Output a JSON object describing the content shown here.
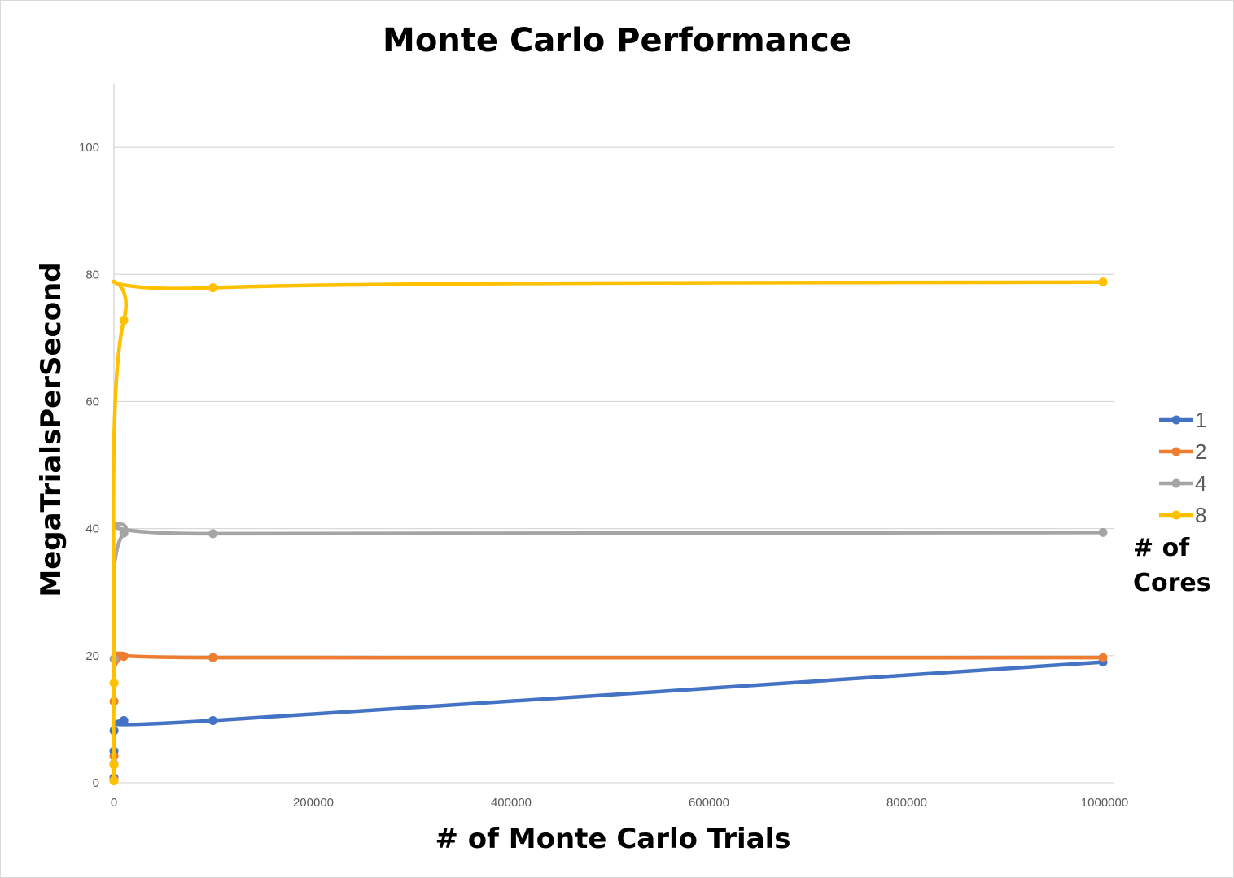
{
  "chart_data": {
    "type": "line",
    "title": "Monte Carlo Performance",
    "xlabel": "# of Monte Carlo Trials",
    "ylabel": "MegaTrialsPerSecond",
    "xlim": [
      0,
      1000000
    ],
    "ylim": [
      0,
      110
    ],
    "x_ticks": [
      0,
      200000,
      400000,
      600000,
      800000,
      1000000
    ],
    "x_tick_labels": [
      "0",
      "200000",
      "400000",
      "600000",
      "800000",
      "1000000"
    ],
    "y_ticks": [
      0,
      20,
      40,
      60,
      80,
      100
    ],
    "y_tick_labels": [
      "0",
      "20",
      "40",
      "60",
      "80",
      "100"
    ],
    "grid": "horizontal",
    "legend": {
      "position": "right",
      "title": "# of Cores"
    },
    "series": [
      {
        "name": "1",
        "color": "#4472C4",
        "points": [
          [
            1,
            0.8
          ],
          [
            10,
            5.0
          ],
          [
            100,
            8.2
          ],
          [
            10000,
            9.8
          ],
          [
            100000,
            9.8
          ],
          [
            1000000,
            19.0
          ]
        ]
      },
      {
        "name": "2",
        "color": "#ED7D31",
        "points": [
          [
            1,
            0.5
          ],
          [
            10,
            4.2
          ],
          [
            100,
            12.8
          ],
          [
            10000,
            19.9
          ],
          [
            100000,
            19.7
          ],
          [
            1000000,
            19.7
          ]
        ]
      },
      {
        "name": "4",
        "color": "#A5A5A5",
        "points": [
          [
            1,
            0.4
          ],
          [
            10,
            3.0
          ],
          [
            100,
            19.5
          ],
          [
            10000,
            39.3
          ],
          [
            100000,
            39.2
          ],
          [
            1000000,
            39.4
          ]
        ]
      },
      {
        "name": "8",
        "color": "#FFC000",
        "points": [
          [
            1,
            0.3
          ],
          [
            10,
            2.8
          ],
          [
            100,
            15.7
          ],
          [
            10000,
            72.8
          ],
          [
            100000,
            77.9
          ],
          [
            1000000,
            78.8
          ]
        ]
      }
    ]
  }
}
